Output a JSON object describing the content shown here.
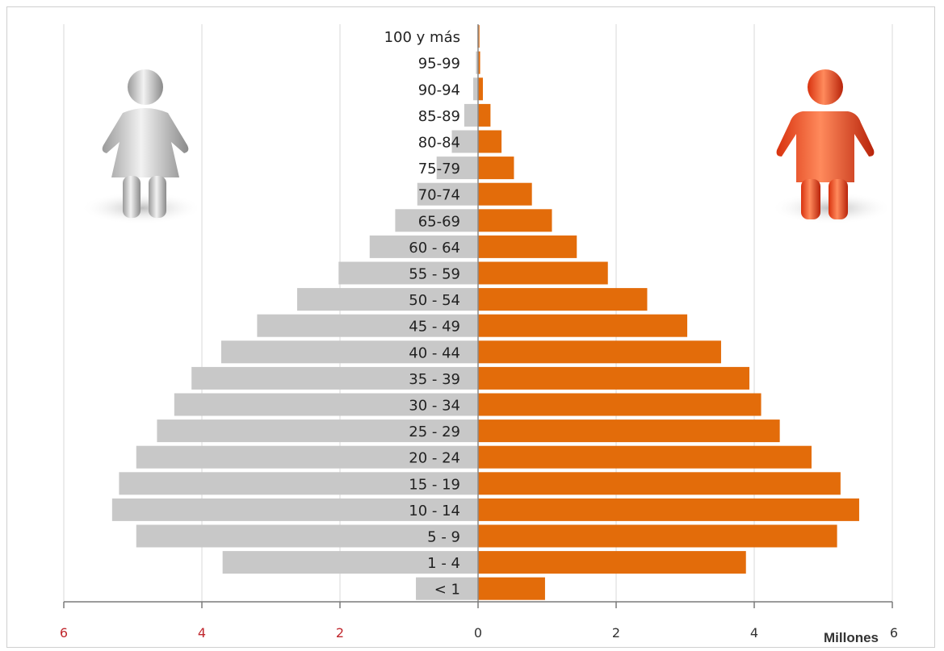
{
  "chart_data": {
    "type": "bar",
    "orientation": "horizontal",
    "subtype": "population-pyramid",
    "categories": [
      "< 1",
      "1 - 4",
      "5 - 9",
      "10 - 14",
      "15 - 19",
      "20 - 24",
      "25 - 29",
      "30 - 34",
      "35 - 39",
      "40 - 44",
      "45 - 49",
      "50 - 54",
      "55 - 59",
      "60 - 64",
      "65-69",
      "70-74",
      "75-79",
      "80-84",
      "85-89",
      "90-94",
      "95-99",
      "100 y más"
    ],
    "series": [
      {
        "side": "left",
        "color": "#c8c8c8",
        "values": [
          0.9,
          3.7,
          4.95,
          5.3,
          5.2,
          4.95,
          4.65,
          4.4,
          4.15,
          3.72,
          3.2,
          2.62,
          2.02,
          1.57,
          1.2,
          0.88,
          0.6,
          0.38,
          0.2,
          0.07,
          0.03,
          0.01
        ]
      },
      {
        "side": "right",
        "color": "#e36c0a",
        "values": [
          0.97,
          3.88,
          5.2,
          5.52,
          5.25,
          4.83,
          4.37,
          4.1,
          3.93,
          3.52,
          3.03,
          2.45,
          1.88,
          1.43,
          1.07,
          0.78,
          0.52,
          0.34,
          0.18,
          0.07,
          0.03,
          0.02
        ]
      }
    ],
    "x_ticks_left": [
      "6",
      "4",
      "2"
    ],
    "x_ticks_right": [
      "0",
      "2",
      "4",
      "6"
    ],
    "x_unit": "Millones",
    "xlim": [
      -6,
      6
    ],
    "grid": true,
    "colors": {
      "left_tick": "#c0272d",
      "right_tick": "#333333",
      "grid": "#d9d9d9"
    },
    "icons": {
      "left": "female-figure-icon",
      "right": "male-figure-icon"
    }
  }
}
